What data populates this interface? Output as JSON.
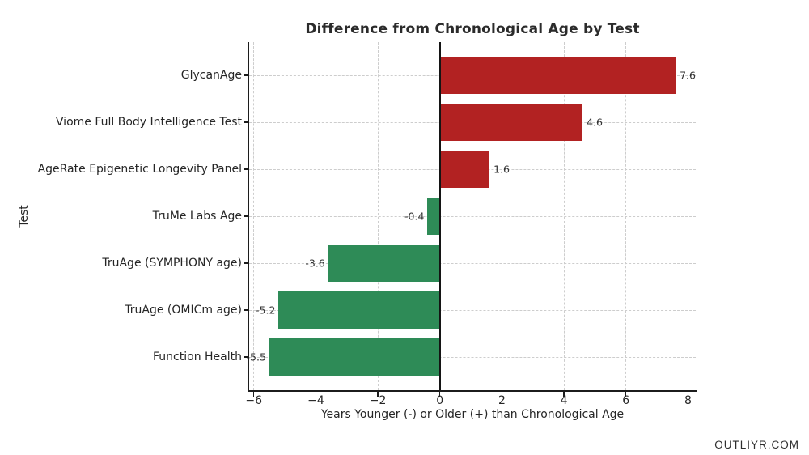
{
  "watermark": "OUTLIYR.COM",
  "chart_data": {
    "type": "bar",
    "orientation": "horizontal",
    "title": "Difference from Chronological Age by Test",
    "xlabel": "Years Younger (-) or Older (+) than Chronological Age",
    "ylabel": "Test",
    "categories": [
      "GlycanAge",
      "Viome Full Body Intelligence Test",
      "AgeRate Epigenetic Longevity Panel",
      "TruMe Labs Age",
      "TruAge (SYMPHONY age)",
      "TruAge (OMICm age)",
      "Function Health"
    ],
    "values": [
      7.6,
      4.6,
      1.6,
      -0.4,
      -3.6,
      -5.2,
      -5.5
    ],
    "value_labels": [
      "7.6",
      "4.6",
      "1.6",
      "-0.4",
      "-3.6",
      "-5.2",
      "-5.5"
    ],
    "xticks": [
      -6,
      -4,
      -2,
      0,
      2,
      4,
      6,
      8
    ],
    "xtick_labels": [
      "−6",
      "−4",
      "−2",
      "0",
      "2",
      "4",
      "6",
      "8"
    ],
    "xlim": [
      -6.15,
      8.25
    ],
    "grid": true,
    "grid_style": "dashed",
    "legend": "none",
    "positive_color": "#b22222",
    "negative_color": "#2e8b57",
    "background_color": "#ffffff"
  }
}
